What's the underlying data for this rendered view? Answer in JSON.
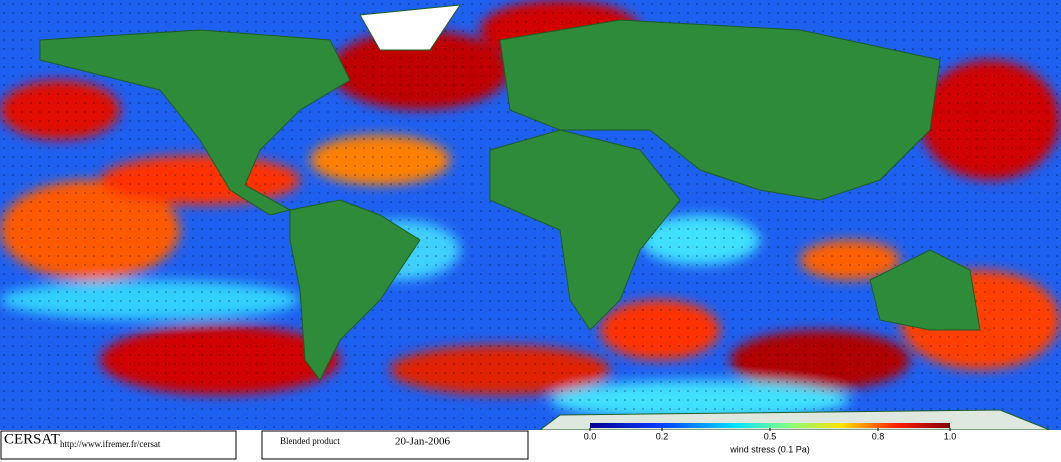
{
  "footer": {
    "logo": "CERSAT",
    "url": "http://www.ifremer.fr/cersat",
    "product": "Blended product",
    "date": "20-Jan-2006"
  },
  "colorbar": {
    "label": "wind stress (0.1 Pa)",
    "lim": [
      0,
      1
    ],
    "ticks": [
      {
        "value": 0,
        "label": "0.0"
      },
      0.2,
      0.5,
      0.8,
      {
        "value": 1,
        "label": "1.0"
      }
    ]
  }
}
